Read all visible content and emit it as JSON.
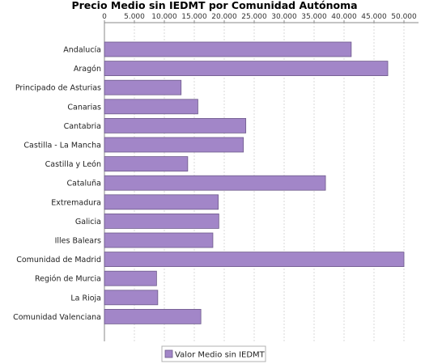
{
  "chart_data": {
    "type": "bar",
    "orientation": "horizontal",
    "title": "Precio Medio sin IEDMT por Comunidad Autónoma",
    "categories": [
      "Andalucía",
      "Aragón",
      "Principado de Asturias",
      "Canarias",
      "Cantabria",
      "Castilla - La Mancha",
      "Castilla y León",
      "Cataluña",
      "Extremadura",
      "Galicia",
      "Illes Balears",
      "Comunidad de Madrid",
      "Región de Murcia",
      "La Rioja",
      "Comunidad Valenciana"
    ],
    "series": [
      {
        "name": "Valor Medio sin IEDMT",
        "values": [
          41200,
          47300,
          12800,
          15600,
          23600,
          23200,
          13900,
          36900,
          19000,
          19100,
          18100,
          50000,
          8700,
          8900,
          16100
        ]
      }
    ],
    "xlim": [
      0,
      50000
    ],
    "xticks": [
      "0",
      "5.000",
      "10.000",
      "15.000",
      "20.000",
      "25.000",
      "30.000",
      "35.000",
      "40.000",
      "45.000",
      "50.000"
    ],
    "xtick_values": [
      0,
      5000,
      10000,
      15000,
      20000,
      25000,
      30000,
      35000,
      40000,
      45000,
      50000
    ],
    "xaxis_position": "top",
    "grid": true,
    "legend_position": "bottom-center",
    "colors": {
      "bar_fill": "#a286c8",
      "bar_stroke": "#6d5a8a",
      "grid": "#d8d8d8",
      "axis": "#888888"
    }
  }
}
